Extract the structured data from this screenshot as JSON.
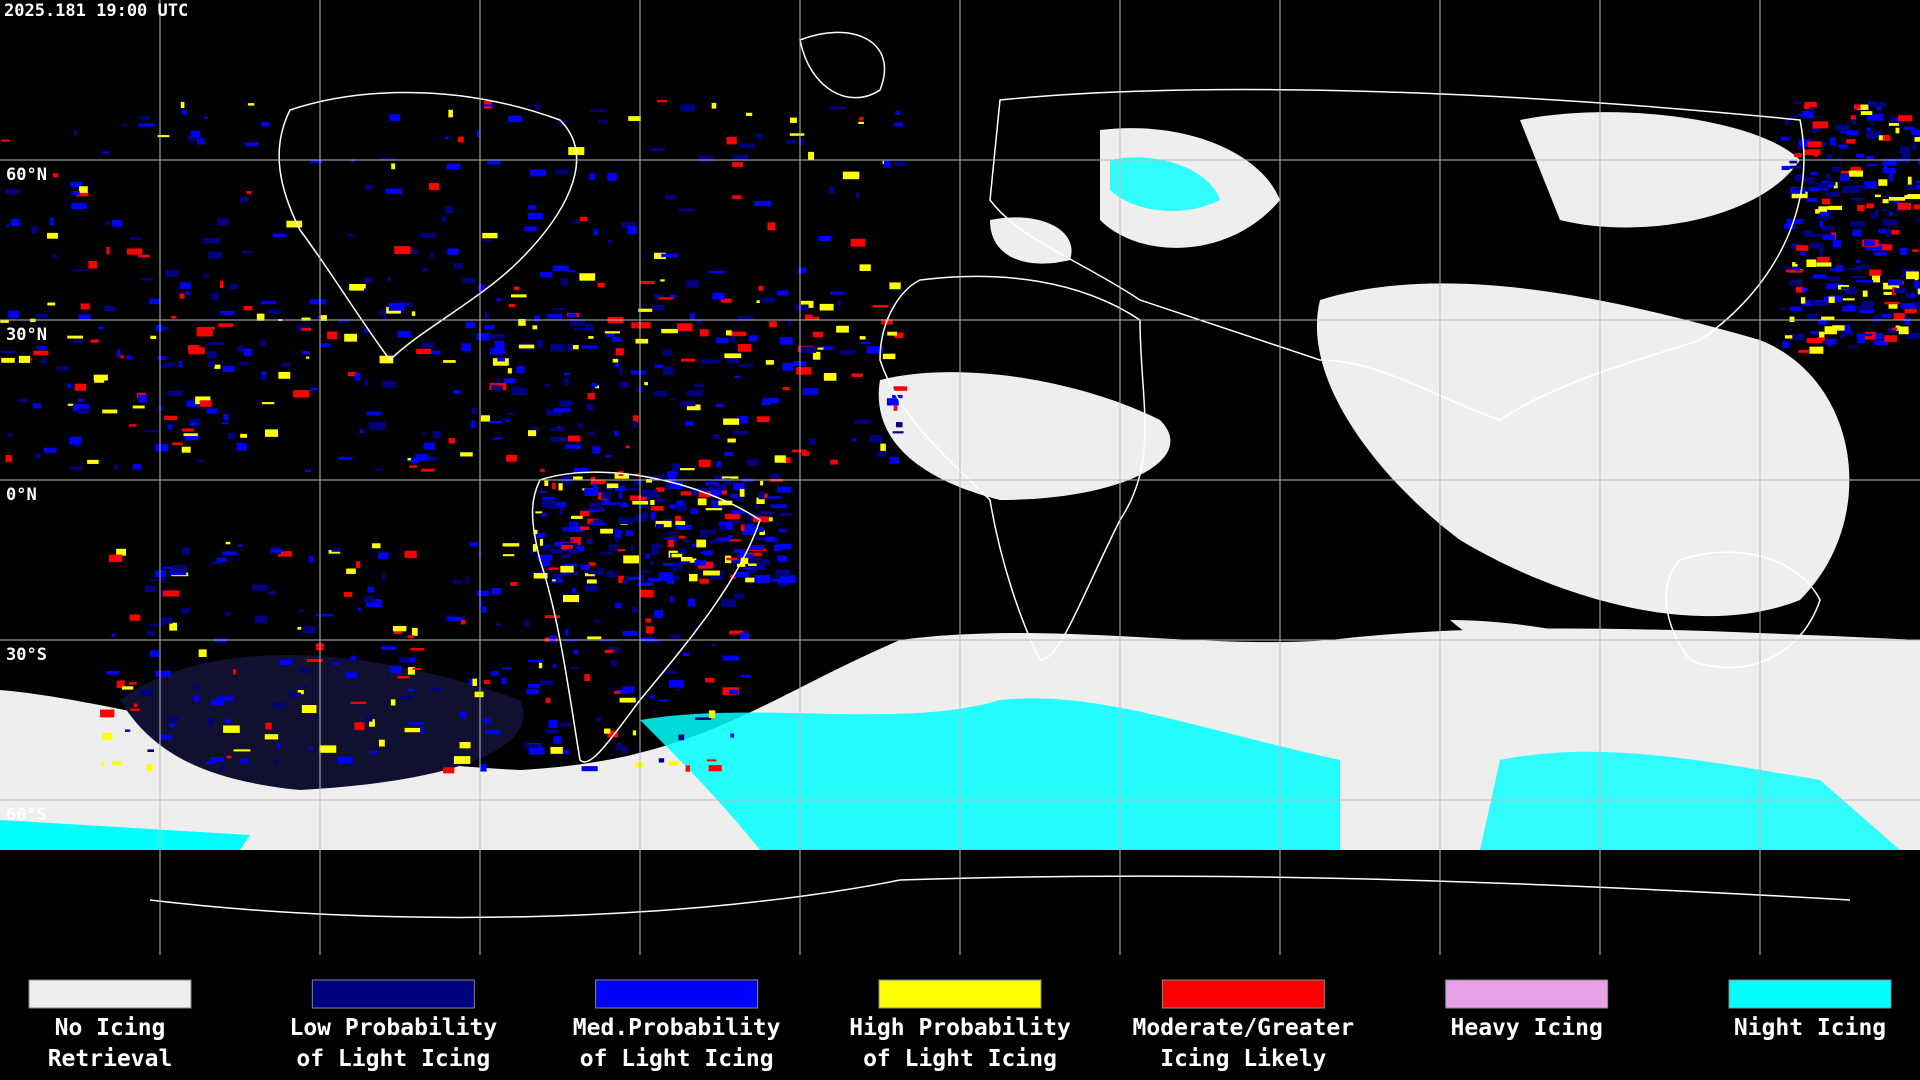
{
  "header": {
    "timestamp": "2025.181 19:00 UTC"
  },
  "map": {
    "latitude_labels": [
      "60°N",
      "30°N",
      "0°N",
      "30°S",
      "60°S"
    ]
  },
  "legend": {
    "items": [
      {
        "label": [
          "No Icing",
          "Retrieval"
        ],
        "color": "#eeeeee"
      },
      {
        "label": [
          "Low Probability",
          "of Light Icing"
        ],
        "color": "#000080"
      },
      {
        "label": [
          "Med.Probability",
          "of Light Icing"
        ],
        "color": "#0000ff"
      },
      {
        "label": [
          "High Probability",
          "of Light Icing"
        ],
        "color": "#ffff00"
      },
      {
        "label": [
          "Moderate/Greater",
          "Icing Likely"
        ],
        "color": "#ff0000"
      },
      {
        "label": [
          "Heavy Icing",
          ""
        ],
        "color": "#e8a0e8"
      },
      {
        "label": [
          "Night Icing",
          ""
        ],
        "color": "#00ffff"
      }
    ]
  }
}
